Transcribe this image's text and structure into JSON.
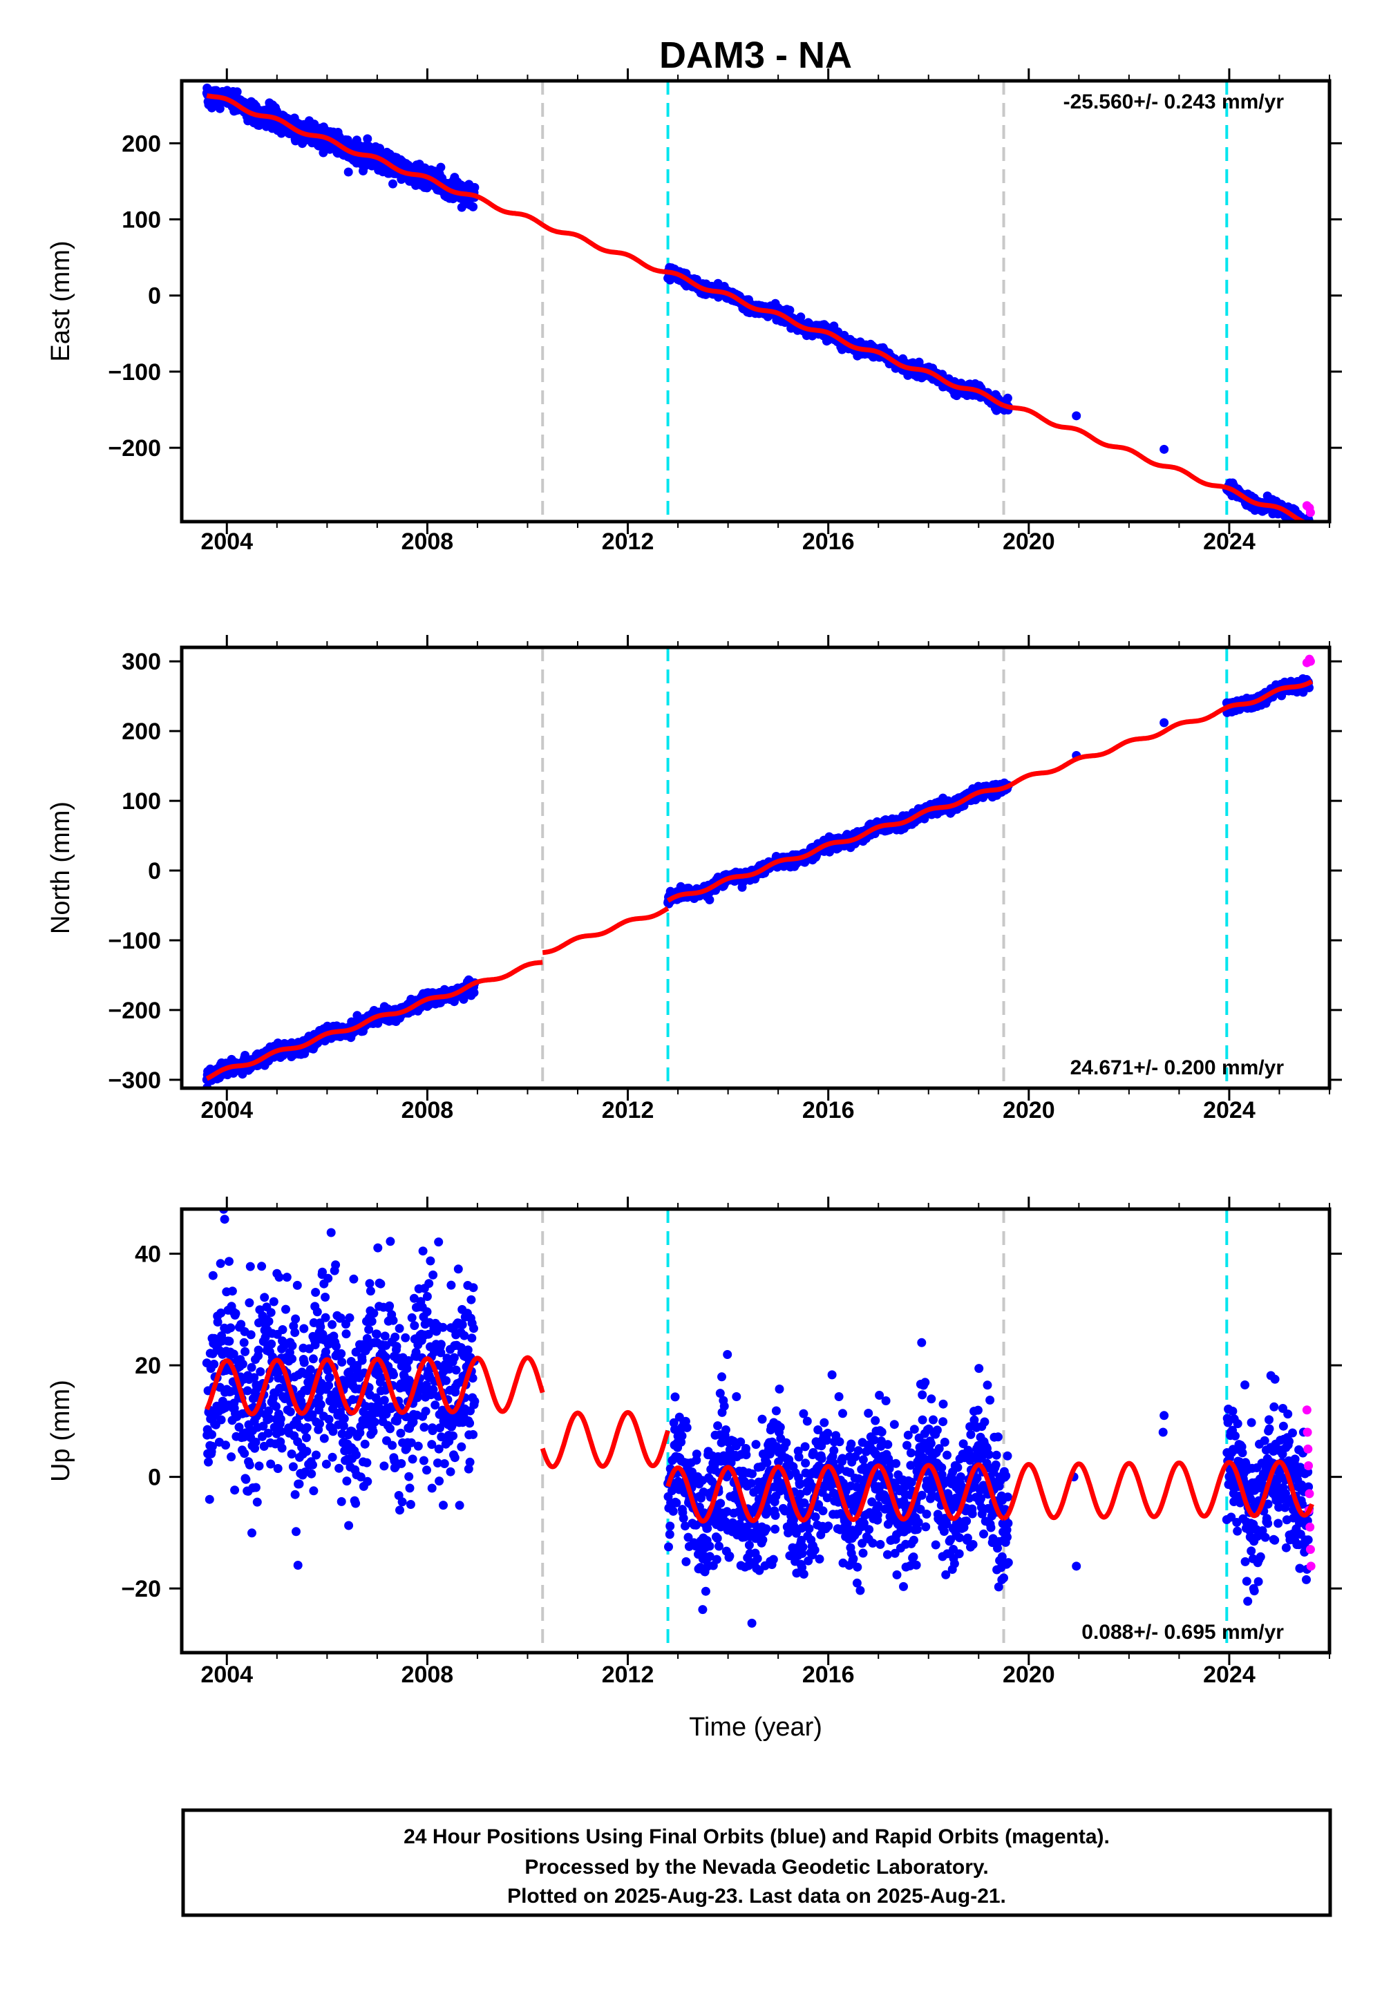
{
  "chart_data": {
    "title": "DAM3 - NA",
    "type": "scatter",
    "x_axis": {
      "label": "Time (year)",
      "range": [
        2003.1,
        2026.0
      ],
      "ticks": [
        "2004",
        "2008",
        "2012",
        "2016",
        "2020",
        "2024"
      ],
      "tick_values": [
        2004,
        2008,
        2012,
        2016,
        2020,
        2024
      ]
    },
    "event_lines": [
      {
        "year": 2010.3,
        "color": "#c8c8c8"
      },
      {
        "year": 2012.8,
        "color": "#00e5ee"
      },
      {
        "year": 2019.5,
        "color": "#c8c8c8"
      },
      {
        "year": 2023.95,
        "color": "#00e5ee"
      }
    ],
    "series_colors": {
      "final_orbits": "#0000ff",
      "rapid_orbits": "#ff00ff",
      "model": "#ff0000"
    },
    "panels": [
      {
        "id": "east",
        "ylabel": "East (mm)",
        "ylim": [
          -297,
          282
        ],
        "yticks": [
          200,
          100,
          0,
          -100,
          -200
        ],
        "ytick_labels": [
          "200",
          "100",
          "0",
          "−100",
          "−200"
        ],
        "rate_text": "-25.560+/- 0.243 mm/yr",
        "rate_position": "top-right",
        "trend": {
          "mm_per_yr": -25.56,
          "value_at_2003_6": 265
        },
        "seasonal_amplitude": 3,
        "offsets": [
          {
            "year": 2010.3,
            "step": 0
          },
          {
            "year": 2012.8,
            "step": 0
          },
          {
            "year": 2019.5,
            "step": 0
          },
          {
            "year": 2023.95,
            "step": 0
          }
        ],
        "data_segments": [
          {
            "start": 2003.6,
            "end": 2008.95,
            "scatter": 7
          },
          {
            "start": 2012.8,
            "end": 2019.6,
            "scatter": 4
          },
          {
            "start": 2023.95,
            "end": 2025.6,
            "scatter": 4
          }
        ],
        "isolated_points": [
          {
            "year": 2020.95,
            "value": -158
          },
          {
            "year": 2022.7,
            "value": -202
          }
        ],
        "rapid_points": [
          {
            "year": 2025.55,
            "value": -276
          },
          {
            "year": 2025.62,
            "value": -285
          },
          {
            "year": 2025.6,
            "value": -279
          }
        ]
      },
      {
        "id": "north",
        "ylabel": "North (mm)",
        "ylim": [
          -312,
          320
        ],
        "yticks": [
          300,
          200,
          100,
          0,
          -100,
          -200,
          -300
        ],
        "ytick_labels": [
          "300",
          "200",
          "100",
          "0",
          "−100",
          "−200",
          "−300"
        ],
        "rate_text": "24.671+/- 0.200 mm/yr",
        "rate_position": "bottom-right",
        "trend": {
          "mm_per_yr": 24.671,
          "value_at_2003_6": -296
        },
        "seasonal_amplitude": 3,
        "offsets": [
          {
            "year": 2010.3,
            "step": 14
          },
          {
            "year": 2012.8,
            "step": 11
          },
          {
            "year": 2019.5,
            "step": 0
          },
          {
            "year": 2023.95,
            "step": 0
          }
        ],
        "data_segments": [
          {
            "start": 2003.6,
            "end": 2008.95,
            "scatter": 5
          },
          {
            "start": 2012.8,
            "end": 2019.6,
            "scatter": 4
          },
          {
            "start": 2023.95,
            "end": 2025.6,
            "scatter": 4
          }
        ],
        "isolated_points": [
          {
            "year": 2020.95,
            "value": 165
          },
          {
            "year": 2022.7,
            "value": 212
          }
        ],
        "rapid_points": [
          {
            "year": 2025.55,
            "value": 298
          },
          {
            "year": 2025.6,
            "value": 303
          },
          {
            "year": 2025.62,
            "value": 300
          }
        ]
      },
      {
        "id": "up",
        "ylabel": "Up (mm)",
        "ylim": [
          -31.5,
          48
        ],
        "yticks": [
          40,
          20,
          0,
          -20
        ],
        "ytick_labels": [
          "40",
          "20",
          "0",
          "−20"
        ],
        "rate_text": "0.088+/- 0.695 mm/yr",
        "rate_position": "bottom-right",
        "trend": {
          "mm_per_yr": 0.088,
          "value_at_2003_6": 16
        },
        "seasonal_amplitude": 4.8,
        "offsets": [
          {
            "year": 2010.3,
            "step": -10
          },
          {
            "year": 2012.8,
            "step": -10
          },
          {
            "year": 2019.5,
            "step": 0
          },
          {
            "year": 2023.95,
            "step": 0
          }
        ],
        "data_segments": [
          {
            "start": 2003.6,
            "end": 2008.95,
            "scatter": 9
          },
          {
            "start": 2012.8,
            "end": 2019.6,
            "scatter": 6
          },
          {
            "start": 2023.95,
            "end": 2025.6,
            "scatter": 6
          }
        ],
        "isolated_points": [
          {
            "year": 2020.95,
            "value": -16
          },
          {
            "year": 2022.7,
            "value": 11
          },
          {
            "year": 2022.68,
            "value": 8
          },
          {
            "year": 2020.9,
            "value": 0
          }
        ],
        "rapid_points": [
          {
            "year": 2025.55,
            "value": 12
          },
          {
            "year": 2025.56,
            "value": 8
          },
          {
            "year": 2025.57,
            "value": 5
          },
          {
            "year": 2025.58,
            "value": 2
          },
          {
            "year": 2025.6,
            "value": -3
          },
          {
            "year": 2025.61,
            "value": -9
          },
          {
            "year": 2025.62,
            "value": -13
          },
          {
            "year": 2025.63,
            "value": -16
          },
          {
            "year": 2025.59,
            "value": -6
          }
        ]
      }
    ],
    "footer": [
      "24 Hour Positions Using Final Orbits (blue) and Rapid Orbits (magenta).",
      "Processed by the Nevada Geodetic Laboratory.",
      "Plotted on 2025-Aug-23. Last data on 2025-Aug-21."
    ]
  }
}
